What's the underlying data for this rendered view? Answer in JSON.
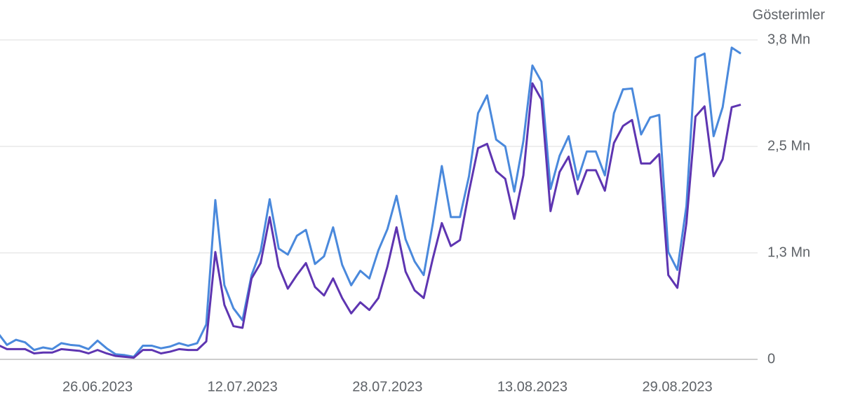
{
  "chart_data": {
    "type": "line",
    "y_axis_title": "Gösterimler",
    "categories": [
      null,
      null,
      null,
      null,
      null,
      null,
      null,
      null,
      null,
      null,
      null,
      "26.06.2023",
      null,
      null,
      null,
      null,
      null,
      null,
      null,
      null,
      null,
      null,
      null,
      null,
      null,
      null,
      null,
      "12.07.2023",
      null,
      null,
      null,
      null,
      null,
      null,
      null,
      null,
      null,
      null,
      null,
      null,
      null,
      null,
      null,
      "28.07.2023",
      null,
      null,
      null,
      null,
      null,
      null,
      null,
      null,
      null,
      null,
      null,
      null,
      null,
      null,
      null,
      "13.08.2023",
      null,
      null,
      null,
      null,
      null,
      null,
      null,
      null,
      null,
      null,
      null,
      null,
      null,
      null,
      null,
      "29.08.2023",
      null,
      null,
      null,
      null,
      null,
      null,
      null
    ],
    "series": [
      {
        "color": "#4a89dc",
        "values": [
          0.31,
          0.17,
          0.23,
          0.2,
          0.11,
          0.14,
          0.12,
          0.19,
          0.17,
          0.16,
          0.12,
          0.22,
          0.13,
          0.06,
          0.05,
          0.03,
          0.16,
          0.16,
          0.13,
          0.15,
          0.19,
          0.16,
          0.19,
          0.41,
          1.87,
          0.87,
          0.6,
          0.46,
          0.99,
          1.27,
          1.88,
          1.3,
          1.23,
          1.45,
          1.52,
          1.12,
          1.21,
          1.55,
          1.11,
          0.87,
          1.04,
          0.95,
          1.28,
          1.53,
          1.92,
          1.41,
          1.15,
          0.99,
          1.59,
          2.27,
          1.67,
          1.67,
          2.15,
          2.89,
          3.1,
          2.58,
          2.5,
          1.97,
          2.56,
          3.45,
          3.26,
          2.0,
          2.39,
          2.62,
          2.11,
          2.44,
          2.44,
          2.16,
          2.89,
          3.17,
          3.18,
          2.64,
          2.84,
          2.87,
          1.26,
          1.05,
          1.8,
          3.54,
          3.59,
          2.62,
          2.96,
          3.66,
          3.59
        ]
      },
      {
        "color": "#5e35b1",
        "values": [
          0.17,
          0.12,
          0.12,
          0.12,
          0.07,
          0.08,
          0.08,
          0.12,
          0.11,
          0.1,
          0.07,
          0.11,
          0.07,
          0.04,
          0.03,
          0.02,
          0.11,
          0.11,
          0.07,
          0.09,
          0.12,
          0.11,
          0.11,
          0.21,
          1.26,
          0.64,
          0.39,
          0.37,
          0.95,
          1.13,
          1.67,
          1.09,
          0.83,
          0.99,
          1.13,
          0.85,
          0.75,
          0.95,
          0.72,
          0.54,
          0.67,
          0.58,
          0.72,
          1.09,
          1.55,
          1.03,
          0.81,
          0.72,
          1.18,
          1.6,
          1.33,
          1.4,
          1.97,
          2.48,
          2.53,
          2.21,
          2.12,
          1.65,
          2.16,
          3.24,
          3.05,
          1.74,
          2.2,
          2.38,
          1.94,
          2.22,
          2.22,
          1.98,
          2.54,
          2.74,
          2.81,
          2.3,
          2.3,
          2.41,
          0.99,
          0.84,
          1.6,
          2.85,
          2.97,
          2.15,
          2.35,
          2.96,
          2.99
        ]
      }
    ],
    "ylim": [
      0,
      3.75
    ],
    "yticks": [
      0,
      {
        "value": 1.25,
        "label": "1,3 Mn"
      },
      {
        "value": 2.5,
        "label": "2,5 Mn"
      },
      {
        "value": 3.75,
        "label": "3,8 Mn"
      }
    ],
    "grid": true
  }
}
